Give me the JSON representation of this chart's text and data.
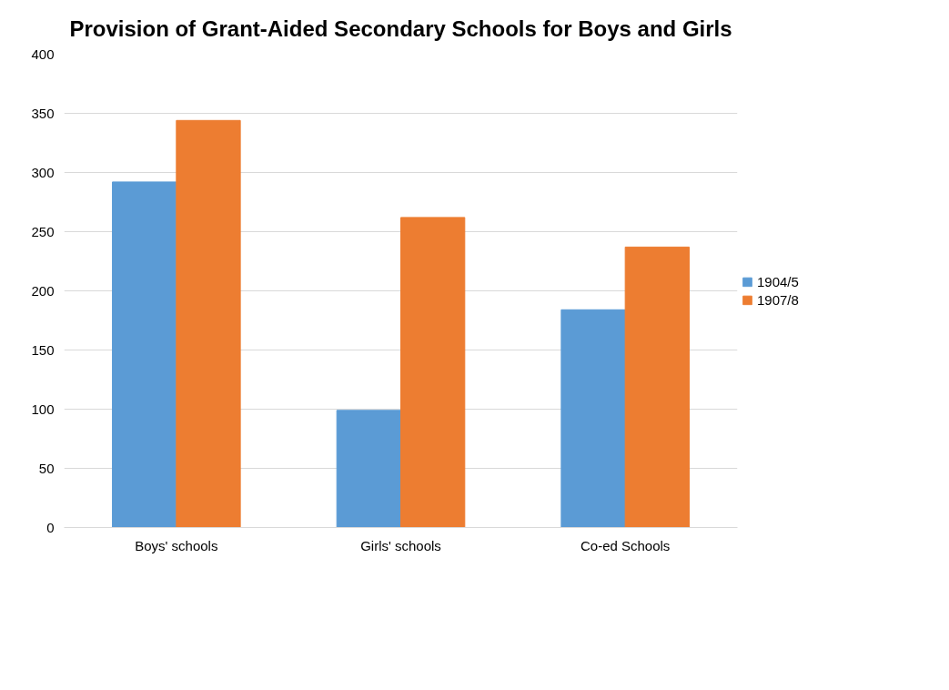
{
  "chart_data": {
    "type": "bar",
    "title": "Provision of Grant-Aided Secondary Schools for Boys and Girls",
    "categories": [
      "Boys' schools",
      "Girls' schools",
      "Co-ed Schools"
    ],
    "series": [
      {
        "name": "1904/5",
        "color": "#5b9bd5",
        "values": [
          292,
          99,
          184
        ]
      },
      {
        "name": "1907/8",
        "color": "#ed7d31",
        "values": [
          344,
          262,
          237
        ]
      }
    ],
    "ylim": [
      0,
      400
    ],
    "yticks": [
      0,
      50,
      100,
      150,
      200,
      250,
      300,
      350,
      400
    ],
    "grid": "y",
    "legend": "right"
  }
}
